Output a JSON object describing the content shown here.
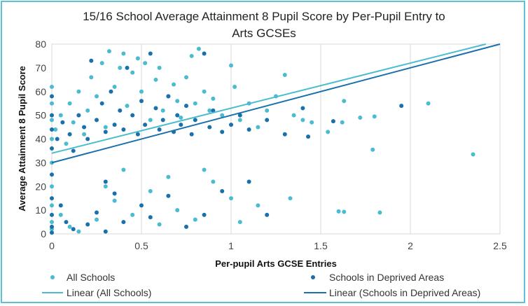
{
  "chart_data": {
    "type": "scatter",
    "title_lines": [
      "15/16 School Average Attainment 8 Pupil Score by Per-Pupil Entry to",
      "Arts GCSEs"
    ],
    "xlabel": "Per-pupil Arts GCSE Entries",
    "ylabel": "Average Attainment 8 Pupil Score",
    "xlim": [
      0,
      2.5
    ],
    "ylim": [
      0,
      80
    ],
    "xticks": [
      0,
      0.5,
      1,
      1.5,
      2,
      2.5
    ],
    "xtick_labels": [
      "0",
      "0.5",
      "1",
      "1.5",
      "2",
      "2.5"
    ],
    "yticks": [
      0,
      10,
      20,
      30,
      40,
      50,
      60,
      70,
      80
    ],
    "ytick_labels": [
      "0",
      "10",
      "20",
      "30",
      "40",
      "50",
      "60",
      "70",
      "80"
    ],
    "grid": "vertical",
    "legend_position": "bottom",
    "series": [
      {
        "name": "All Schools",
        "kind": "points",
        "color": "#4bbccf",
        "points": [
          [
            0,
            62
          ],
          [
            0,
            55
          ],
          [
            0,
            48
          ],
          [
            0,
            40
          ],
          [
            0,
            30
          ],
          [
            0,
            20
          ],
          [
            0,
            12
          ],
          [
            0,
            5
          ],
          [
            0,
            2
          ],
          [
            0.02,
            44
          ],
          [
            0.05,
            50
          ],
          [
            0.08,
            38
          ],
          [
            0.1,
            55
          ],
          [
            0.12,
            47
          ],
          [
            0.15,
            60
          ],
          [
            0.18,
            42
          ],
          [
            0.2,
            52
          ],
          [
            0.22,
            66
          ],
          [
            0.25,
            58
          ],
          [
            0.28,
            72
          ],
          [
            0.3,
            45
          ],
          [
            0.32,
            77
          ],
          [
            0.35,
            62
          ],
          [
            0.38,
            70
          ],
          [
            0.4,
            76
          ],
          [
            0.42,
            54
          ],
          [
            0.45,
            68
          ],
          [
            0.48,
            74
          ],
          [
            0.5,
            60
          ],
          [
            0.52,
            72
          ],
          [
            0.55,
            48
          ],
          [
            0.58,
            65
          ],
          [
            0.6,
            70
          ],
          [
            0.62,
            52
          ],
          [
            0.65,
            58
          ],
          [
            0.68,
            63
          ],
          [
            0.7,
            56
          ],
          [
            0.72,
            49
          ],
          [
            0.75,
            66
          ],
          [
            0.78,
            75
          ],
          [
            0.8,
            55
          ],
          [
            0.82,
            78
          ],
          [
            0.85,
            60
          ],
          [
            0.88,
            52
          ],
          [
            0.9,
            57
          ],
          [
            0.95,
            50
          ],
          [
            1.0,
            71
          ],
          [
            1.02,
            62
          ],
          [
            1.05,
            48
          ],
          [
            1.1,
            55
          ],
          [
            1.15,
            45
          ],
          [
            1.2,
            52
          ],
          [
            1.25,
            58
          ],
          [
            1.3,
            67
          ],
          [
            1.35,
            50
          ],
          [
            1.4,
            48
          ],
          [
            1.45,
            47
          ],
          [
            1.54,
            43
          ],
          [
            1.62,
            47
          ],
          [
            1.63,
            56
          ],
          [
            1.72,
            49
          ],
          [
            1.79,
            35.5
          ],
          [
            1.8,
            49.5
          ],
          [
            2.1,
            55
          ],
          [
            2.35,
            33.5
          ],
          [
            0.3,
            20
          ],
          [
            0.35,
            14
          ],
          [
            0.45,
            8
          ],
          [
            0.55,
            18
          ],
          [
            0.6,
            4
          ],
          [
            0.7,
            10
          ],
          [
            0.8,
            6
          ],
          [
            0.9,
            22
          ],
          [
            1.0,
            15
          ],
          [
            1.05,
            5
          ],
          [
            1.15,
            12
          ],
          [
            1.33,
            15
          ],
          [
            1.6,
            9.5
          ],
          [
            1.63,
            9.3
          ],
          [
            1.83,
            9
          ],
          [
            0.05,
            8
          ],
          [
            0.1,
            3
          ],
          [
            0.15,
            1
          ],
          [
            0.25,
            6
          ],
          [
            0.4,
            27
          ],
          [
            0.65,
            24
          ],
          [
            0.85,
            27
          ]
        ]
      },
      {
        "name": "Schools in Deprived Areas",
        "kind": "points",
        "color": "#1a6fad",
        "points": [
          [
            0,
            58
          ],
          [
            0,
            50
          ],
          [
            0,
            44
          ],
          [
            0,
            36
          ],
          [
            0,
            25
          ],
          [
            0,
            15
          ],
          [
            0,
            8
          ],
          [
            0,
            3
          ],
          [
            0,
            0.5
          ],
          [
            0.03,
            40
          ],
          [
            0.06,
            47
          ],
          [
            0.1,
            42
          ],
          [
            0.12,
            35
          ],
          [
            0.15,
            50
          ],
          [
            0.18,
            45
          ],
          [
            0.2,
            40
          ],
          [
            0.22,
            73
          ],
          [
            0.25,
            48
          ],
          [
            0.28,
            55
          ],
          [
            0.3,
            43
          ],
          [
            0.33,
            60
          ],
          [
            0.35,
            46
          ],
          [
            0.38,
            52
          ],
          [
            0.4,
            44
          ],
          [
            0.42,
            70
          ],
          [
            0.45,
            50
          ],
          [
            0.48,
            42
          ],
          [
            0.5,
            56
          ],
          [
            0.52,
            46
          ],
          [
            0.55,
            76
          ],
          [
            0.58,
            53
          ],
          [
            0.6,
            44
          ],
          [
            0.62,
            48
          ],
          [
            0.65,
            58
          ],
          [
            0.68,
            43
          ],
          [
            0.7,
            50
          ],
          [
            0.72,
            46
          ],
          [
            0.75,
            54
          ],
          [
            0.78,
            42
          ],
          [
            0.8,
            48
          ],
          [
            0.85,
            76
          ],
          [
            0.88,
            45
          ],
          [
            0.9,
            52
          ],
          [
            0.95,
            43
          ],
          [
            1.0,
            46
          ],
          [
            1.05,
            50
          ],
          [
            1.1,
            44
          ],
          [
            1.2,
            48
          ],
          [
            1.3,
            42
          ],
          [
            1.4,
            53
          ],
          [
            1.43,
            41
          ],
          [
            1.57,
            47.5
          ],
          [
            1.95,
            54
          ],
          [
            0.3,
            22
          ],
          [
            0.35,
            17
          ],
          [
            0.4,
            5
          ],
          [
            0.5,
            12
          ],
          [
            0.55,
            7
          ],
          [
            0.65,
            16
          ],
          [
            0.75,
            3
          ],
          [
            0.85,
            8
          ],
          [
            0.95,
            18
          ],
          [
            1.1,
            22
          ],
          [
            1.2,
            8
          ],
          [
            0.05,
            12
          ],
          [
            0.08,
            5
          ],
          [
            0.12,
            2
          ],
          [
            0.2,
            4
          ],
          [
            0.25,
            9
          ],
          [
            0.3,
            1
          ]
        ]
      },
      {
        "name": "Linear (All Schools)",
        "kind": "trendline",
        "color": "#4bbccf",
        "intercept": 34,
        "slope": 19
      },
      {
        "name": "Linear (Schools in Deprived Areas)",
        "kind": "trendline",
        "color": "#1a6fad",
        "intercept": 30,
        "slope": 20
      }
    ]
  }
}
